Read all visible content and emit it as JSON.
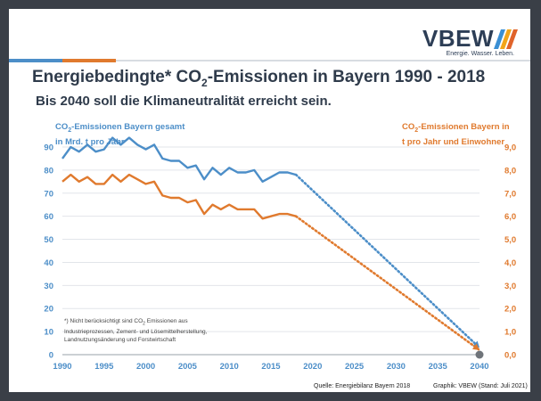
{
  "logo": {
    "text": "VBEW",
    "tagline": "Energie. Wasser. Leben."
  },
  "colors": {
    "blue": "#4c8ec8",
    "orange": "#e07a2e",
    "navy": "#2d3e56",
    "logo_bar_1": "#3a8fd4",
    "logo_bar_2": "#f2a51a",
    "logo_bar_3": "#e0632a"
  },
  "title_prefix": "Energiebedingte* CO",
  "title_sub": "2",
  "title_suffix": "-Emissionen in Bayern 1990 - 2018",
  "subtitle": "Bis 2040 soll die Klimaneutralität erreicht sein.",
  "left_label": {
    "prefix": "CO",
    "sub": "2",
    "line1_rest": "-Emissionen Bayern gesamt",
    "line2": "in Mrd. t pro Jahr"
  },
  "right_label": {
    "prefix": "CO",
    "sub": "2",
    "line1_rest": "-Emissionen Bayern in",
    "line2": "t pro Jahr und Einwohner"
  },
  "footnote": {
    "line1": "*) Nicht berücksichtigt sind CO",
    "line1_sub": "2",
    "line1_rest": " Emissionen aus",
    "line2": "Industrieprozessen, Zement- und Lösemittelherstellung,",
    "line3": "Landnutzungsänderung und Forstwirtschaft"
  },
  "source": "Quelle: Energiebilanz Bayern 2018",
  "graphik": "Graphik: VBEW (Stand: Juli 2021)",
  "chart_data": {
    "type": "line",
    "x": [
      1990,
      1991,
      1992,
      1993,
      1994,
      1995,
      1996,
      1997,
      1998,
      1999,
      2000,
      2001,
      2002,
      2003,
      2004,
      2005,
      2006,
      2007,
      2008,
      2009,
      2010,
      2011,
      2012,
      2013,
      2014,
      2015,
      2016,
      2017,
      2018
    ],
    "xlim": [
      1990,
      2040
    ],
    "xticks": [
      "1990",
      "1995",
      "2000",
      "2005",
      "2010",
      "2015",
      "2020",
      "2025",
      "2030",
      "2035",
      "2040"
    ],
    "y_left": {
      "lim": [
        0,
        90
      ],
      "ticks": [
        "0",
        "10",
        "20",
        "30",
        "40",
        "50",
        "60",
        "70",
        "80",
        "90"
      ]
    },
    "y_right": {
      "lim": [
        0,
        9
      ],
      "ticks": [
        "0,0",
        "1,0",
        "2,0",
        "3,0",
        "4,0",
        "5,0",
        "6,0",
        "7,0",
        "8,0",
        "9,0"
      ]
    },
    "series": [
      {
        "axis": "left",
        "color": "#4c8ec8",
        "values": [
          85,
          90,
          88,
          91,
          88,
          89,
          94,
          91,
          94,
          91,
          89,
          91,
          85,
          84,
          84,
          81,
          82,
          76,
          81,
          78,
          81,
          79,
          79,
          80,
          75,
          77,
          79,
          79,
          78
        ],
        "projection": {
          "x": [
            2018,
            2040
          ],
          "y": [
            78,
            3
          ]
        }
      },
      {
        "axis": "right",
        "color": "#e07a2e",
        "values": [
          7.5,
          7.8,
          7.5,
          7.7,
          7.4,
          7.4,
          7.8,
          7.5,
          7.8,
          7.6,
          7.4,
          7.5,
          6.9,
          6.8,
          6.8,
          6.6,
          6.7,
          6.1,
          6.5,
          6.3,
          6.5,
          6.3,
          6.3,
          6.3,
          5.9,
          6.0,
          6.1,
          6.1,
          6.0
        ],
        "projection": {
          "x": [
            2018,
            2040
          ],
          "y": [
            6.0,
            0.2
          ]
        }
      }
    ],
    "endpoint": {
      "x": 2040,
      "y": 0
    }
  }
}
